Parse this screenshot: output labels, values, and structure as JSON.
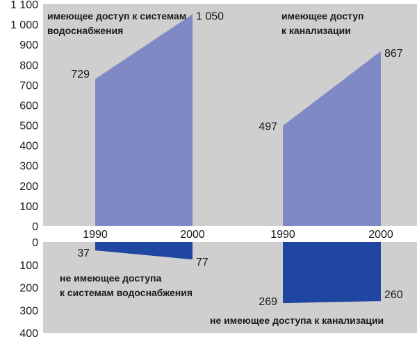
{
  "chart_data": {
    "type": "area",
    "colors": {
      "served": "#7f89c6",
      "unserved": "#1f46a0",
      "panel": "#cfcfcf"
    },
    "categories": [
      "1990",
      "2000"
    ],
    "upper": {
      "ylim": [
        0,
        1100
      ],
      "ticks": [
        "0",
        "100",
        "200",
        "300",
        "400",
        "500",
        "600",
        "700",
        "800",
        "900",
        "1 000",
        "1 100"
      ],
      "series": [
        {
          "label_lines": [
            "имеющее доступ к системам",
            "водоснабжения"
          ],
          "values": [
            729,
            1050
          ],
          "value_labels": [
            "729",
            "1 050"
          ]
        },
        {
          "label_lines": [
            "имеющее доступ",
            "к канализации"
          ],
          "values": [
            497,
            867
          ],
          "value_labels": [
            "497",
            "867"
          ]
        }
      ]
    },
    "lower": {
      "ylim": [
        0,
        400
      ],
      "ticks": [
        "0",
        "100",
        "200",
        "300",
        "400"
      ],
      "series": [
        {
          "label_lines": [
            "не имеющее доступа",
            "к системам водоснабжения"
          ],
          "values": [
            37,
            77
          ],
          "value_labels": [
            "37",
            "77"
          ]
        },
        {
          "label_lines": [
            "не имеющее доступа к канализации"
          ],
          "values": [
            269,
            260
          ],
          "value_labels": [
            "269",
            "260"
          ]
        }
      ]
    }
  }
}
